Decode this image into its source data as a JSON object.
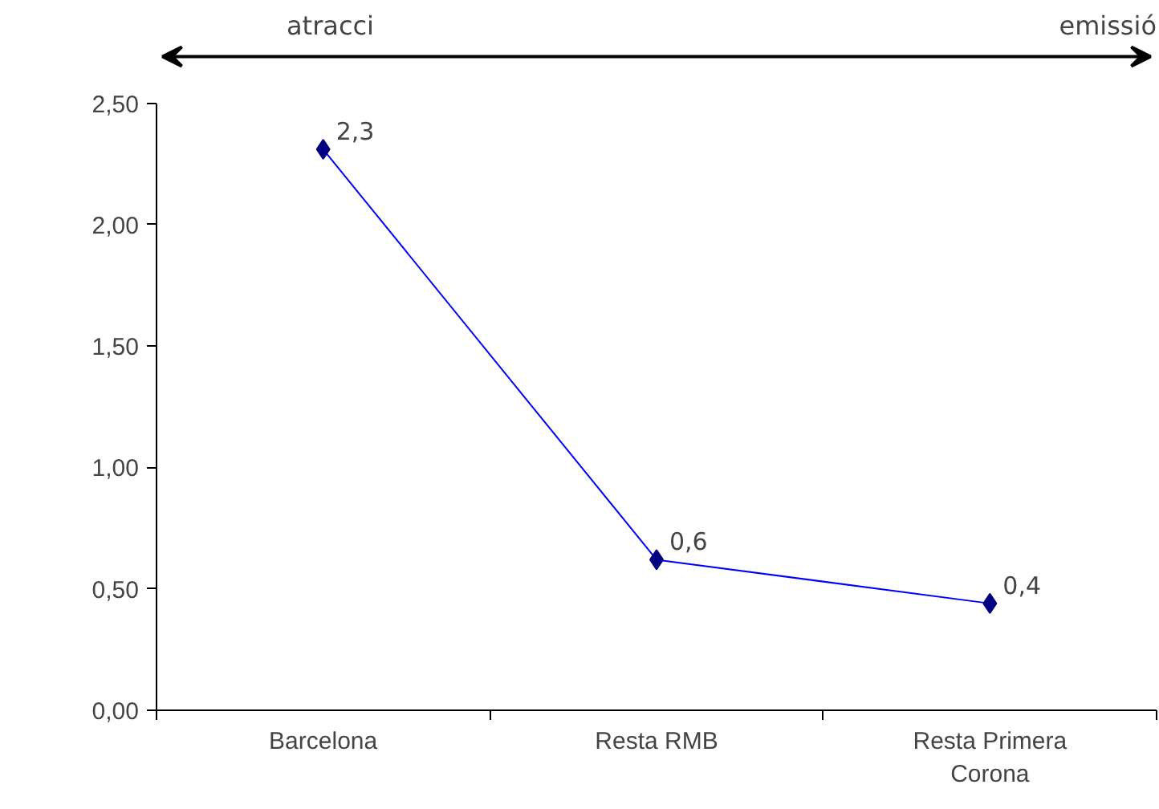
{
  "chart_data": {
    "type": "line",
    "categories": [
      "Barcelona",
      "Resta RMB",
      "Resta Primera Corona"
    ],
    "series": [
      {
        "color": "#000080",
        "values": [
          2.31,
          0.62,
          0.44
        ],
        "value_labels": [
          "2,3",
          "0,6",
          "0,4"
        ]
      }
    ],
    "ylim": [
      0,
      2.5
    ],
    "yticks": [
      {
        "value": 0,
        "label": "0,00"
      },
      {
        "value": 0.5,
        "label": "0,50"
      },
      {
        "value": 1,
        "label": "1,00"
      },
      {
        "value": 1.5,
        "label": "1,50"
      },
      {
        "value": 2,
        "label": "2,00"
      },
      {
        "value": 2.5,
        "label": "2,50"
      }
    ],
    "annotations": [
      "atracci",
      "emissió"
    ],
    "grid": false,
    "marker": "diamond",
    "line_style": "solid"
  }
}
